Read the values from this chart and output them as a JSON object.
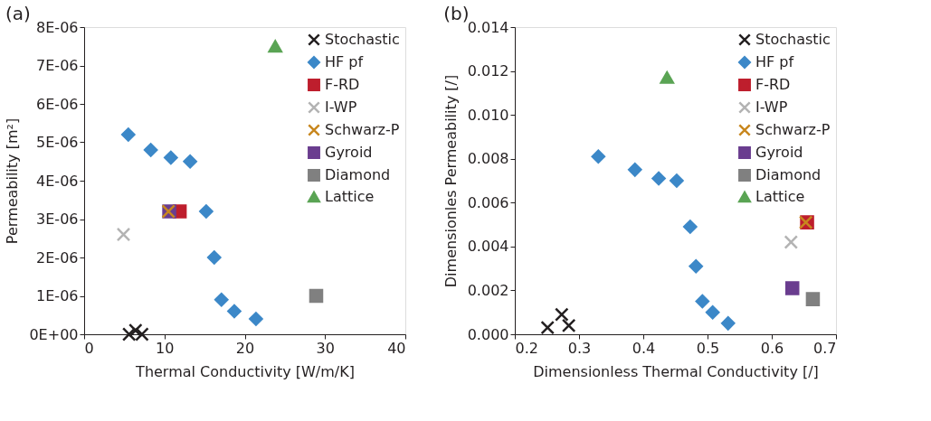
{
  "chart_data": [
    {
      "type": "scatter",
      "title": "(a)",
      "xlabel": "Thermal Conductivity [W/m/K]",
      "ylabel": "Permeability [m²]",
      "xlim": [
        0,
        40
      ],
      "xticks": [
        0,
        10,
        20,
        30,
        40
      ],
      "ylim": [
        0,
        8e-06
      ],
      "yticks": [
        {
          "value": 0,
          "label": "0E+00"
        },
        {
          "value": 1e-06,
          "label": "1E-06"
        },
        {
          "value": 2e-06,
          "label": "2E-06"
        },
        {
          "value": 3e-06,
          "label": "3E-06"
        },
        {
          "value": 4e-06,
          "label": "4E-06"
        },
        {
          "value": 5e-06,
          "label": "5E-06"
        },
        {
          "value": 6e-06,
          "label": "6E-06"
        },
        {
          "value": 7e-06,
          "label": "7E-06"
        },
        {
          "value": 8e-06,
          "label": "8E-06"
        }
      ],
      "grid": false,
      "legend": "top right",
      "series": [
        {
          "name": "Stochastic",
          "color": "#231f20",
          "marker": "cross",
          "x": [
            5.6,
            6.4,
            7.2
          ],
          "values": [
            0.0,
            1e-07,
            0.0
          ]
        },
        {
          "name": "HF pf",
          "color": "#3c88c8",
          "marker": "diamond",
          "x": [
            5.5,
            8.3,
            10.8,
            13.2,
            15.2,
            16.2,
            17.1,
            18.7,
            21.4
          ],
          "values": [
            5.2e-06,
            4.8e-06,
            4.6e-06,
            4.5e-06,
            3.2e-06,
            2e-06,
            9e-07,
            6e-07,
            4e-07
          ]
        },
        {
          "name": "F-RD",
          "color": "#be1e2d",
          "marker": "square",
          "x": [
            11.9
          ],
          "values": [
            3.2e-06
          ]
        },
        {
          "name": "I-WP",
          "color": "#b3b3b3",
          "marker": "cross",
          "x": [
            4.9
          ],
          "values": [
            2.6e-06
          ]
        },
        {
          "name": "Schwarz-P",
          "color": "#c8871e",
          "marker": "cross",
          "x": [
            10.5
          ],
          "values": [
            3.2e-06
          ]
        },
        {
          "name": "Gyroid",
          "color": "#6a3d8f",
          "marker": "square",
          "x": [
            10.6
          ],
          "values": [
            3.2e-06
          ]
        },
        {
          "name": "Diamond",
          "color": "#808080",
          "marker": "square",
          "x": [
            28.9
          ],
          "values": [
            1e-06
          ]
        },
        {
          "name": "Lattice",
          "color": "#5aa454",
          "marker": "triangle",
          "x": [
            23.8
          ],
          "values": [
            7.5e-06
          ]
        }
      ]
    },
    {
      "type": "scatter",
      "title": "(b)",
      "xlabel": "Dimensionless Thermal Conductivity [/]",
      "ylabel": "Dimensionles Permeability [/]",
      "xlim": [
        0.2,
        0.7
      ],
      "xticks": [
        0.2,
        0.3,
        0.4,
        0.5,
        0.6,
        0.7
      ],
      "ylim": [
        0,
        0.014
      ],
      "yticks": [
        {
          "value": 0,
          "label": "0.000"
        },
        {
          "value": 0.002,
          "label": "0.002"
        },
        {
          "value": 0.004,
          "label": "0.004"
        },
        {
          "value": 0.006,
          "label": "0.006"
        },
        {
          "value": 0.008,
          "label": "0.008"
        },
        {
          "value": 0.01,
          "label": "0.010"
        },
        {
          "value": 0.012,
          "label": "0.012"
        },
        {
          "value": 0.014,
          "label": "0.014"
        }
      ],
      "grid": false,
      "legend": "top right",
      "series": [
        {
          "name": "Stochastic",
          "color": "#231f20",
          "marker": "cross",
          "x": [
            0.251,
            0.273,
            0.284
          ],
          "values": [
            0.0003,
            0.0009,
            0.0004
          ]
        },
        {
          "name": "HF pf",
          "color": "#3c88c8",
          "marker": "diamond",
          "x": [
            0.33,
            0.387,
            0.424,
            0.452,
            0.473,
            0.482,
            0.492,
            0.508,
            0.532
          ],
          "values": [
            0.0081,
            0.0075,
            0.0071,
            0.007,
            0.0049,
            0.0031,
            0.0015,
            0.001,
            0.0005
          ]
        },
        {
          "name": "F-RD",
          "color": "#be1e2d",
          "marker": "square",
          "x": [
            0.655
          ],
          "values": [
            0.0051
          ]
        },
        {
          "name": "I-WP",
          "color": "#b3b3b3",
          "marker": "cross",
          "x": [
            0.63
          ],
          "values": [
            0.0042
          ]
        },
        {
          "name": "Schwarz-P",
          "color": "#c8871e",
          "marker": "cross",
          "x": [
            0.653
          ],
          "values": [
            0.0051
          ]
        },
        {
          "name": "Gyroid",
          "color": "#6a3d8f",
          "marker": "square",
          "x": [
            0.632
          ],
          "values": [
            0.0021
          ]
        },
        {
          "name": "Diamond",
          "color": "#808080",
          "marker": "square",
          "x": [
            0.664
          ],
          "values": [
            0.0016
          ]
        },
        {
          "name": "Lattice",
          "color": "#5aa454",
          "marker": "triangle",
          "x": [
            0.437
          ],
          "values": [
            0.0117
          ]
        }
      ]
    }
  ]
}
